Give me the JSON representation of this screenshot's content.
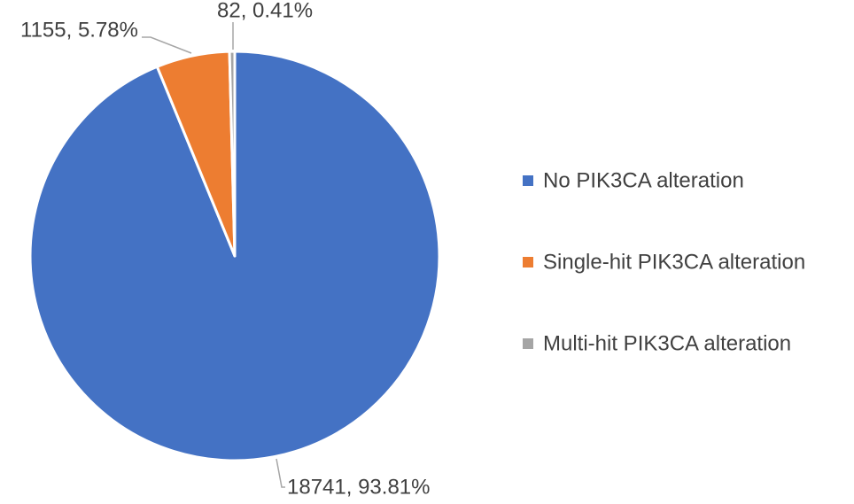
{
  "chart_data": {
    "type": "pie",
    "categories": [
      "No PIK3CA alteration",
      "Single-hit PIK3CA alteration",
      "Multi-hit PIK3CA alteration"
    ],
    "values": [
      18741,
      1155,
      82
    ],
    "value_labels": [
      "18741, 93.81%",
      "1155, 5.78%",
      "82, 0.41%"
    ],
    "colors": [
      "#4472c4",
      "#ed7d31",
      "#a5a5a5"
    ],
    "legend": "right"
  }
}
